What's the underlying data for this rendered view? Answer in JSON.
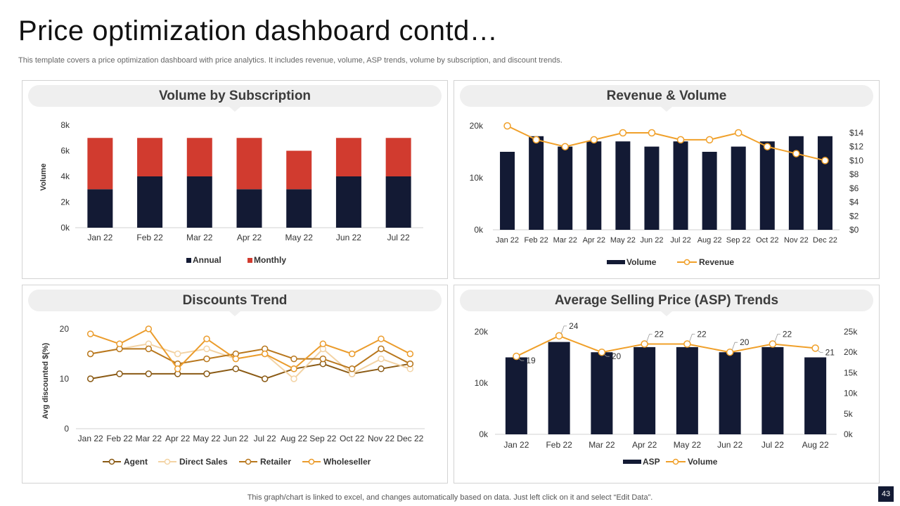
{
  "header": {
    "title": "Price optimization dashboard contd…",
    "subtitle": "This template covers a price optimization dashboard with price analytics. It includes revenue, volume, ASP trends, volume by subscription, and discount trends."
  },
  "footer": {
    "note": "This graph/chart is linked to excel,  and changes automatically based on data. Just left click on it and select “Edit Data”.",
    "page_number": "43"
  },
  "colors": {
    "navy": "#131a34",
    "red": "#d13b2f",
    "orange": "#f0a02a",
    "agent": "#8a5a14",
    "direct_sales": "#f3d3a4",
    "retailer": "#b8771d",
    "wholeseller": "#eb9c2c"
  },
  "chart_data": [
    {
      "id": "subscription",
      "type": "bar",
      "stacked": true,
      "title": "Volume by Subscription",
      "ylabel": "Volume",
      "xlabel": "",
      "ylim": [
        0,
        8000
      ],
      "y_ticks": [
        "0k",
        "2k",
        "4k",
        "6k",
        "8k"
      ],
      "categories": [
        "Jan 22",
        "Feb 22",
        "Mar 22",
        "Apr 22",
        "May 22",
        "Jun 22",
        "Jul 22"
      ],
      "series": [
        {
          "name": "Annual",
          "values": [
            3000,
            4000,
            4000,
            3000,
            3000,
            4000,
            4000
          ]
        },
        {
          "name": "Monthly",
          "values": [
            4000,
            3000,
            3000,
            4000,
            3000,
            3000,
            3000
          ]
        }
      ],
      "legend": "bottom",
      "grid": false
    },
    {
      "id": "revenue_volume",
      "type": "bar+line",
      "title": "Revenue & Volume",
      "ylim": [
        0,
        20000
      ],
      "y_ticks": [
        "0k",
        "10k",
        "20k"
      ],
      "y2lim": [
        0,
        15
      ],
      "y2_ticks": [
        "$0",
        "$2",
        "$4",
        "$6",
        "$8",
        "$10",
        "$12",
        "$14"
      ],
      "categories": [
        "Jan 22",
        "Feb 22",
        "Mar 22",
        "Apr 22",
        "May 22",
        "Jun 22",
        "Jul 22",
        "Aug 22",
        "Sep 22",
        "Oct 22",
        "Nov 22",
        "Dec 22"
      ],
      "series": [
        {
          "name": "Volume",
          "kind": "bar",
          "values": [
            15000,
            18000,
            16000,
            17000,
            17000,
            16000,
            17000,
            15000,
            16000,
            17000,
            18000,
            18000
          ]
        },
        {
          "name": "Revenue",
          "kind": "line",
          "axis": "right",
          "values": [
            15,
            13,
            12,
            13,
            14,
            14,
            13,
            13,
            14,
            12,
            11,
            10
          ]
        }
      ],
      "legend": "bottom",
      "grid": false
    },
    {
      "id": "discounts",
      "type": "line",
      "title": "Discounts Trend",
      "ylabel": "Avg discounted $(%)",
      "ylim": [
        0,
        20
      ],
      "y_ticks": [
        "0",
        "10",
        "20"
      ],
      "categories": [
        "Jan 22",
        "Feb 22",
        "Mar 22",
        "Apr 22",
        "May 22",
        "Jun 22",
        "Jul 22",
        "Aug 22",
        "Sep 22",
        "Oct 22",
        "Nov 22",
        "Dec 22"
      ],
      "series": [
        {
          "name": "Agent",
          "values": [
            10,
            11,
            11,
            11,
            11,
            12,
            10,
            12,
            13,
            11,
            12,
            13
          ]
        },
        {
          "name": "Direct Sales",
          "values": [
            15,
            16,
            17,
            15,
            16,
            14,
            15,
            10,
            16,
            11,
            14,
            12
          ]
        },
        {
          "name": "Retailer",
          "values": [
            15,
            16,
            16,
            13,
            14,
            15,
            16,
            14,
            14,
            12,
            16,
            13
          ]
        },
        {
          "name": "Wholeseller",
          "values": [
            19,
            17,
            20,
            12,
            18,
            14,
            15,
            12,
            17,
            15,
            18,
            15
          ]
        }
      ],
      "legend": "bottom",
      "grid": false
    },
    {
      "id": "asp",
      "type": "bar+line",
      "title": "Average Selling Price (ASP) Trends",
      "ylim": [
        0,
        20000
      ],
      "y_ticks": [
        "0k",
        "10k",
        "20k"
      ],
      "y2lim": [
        0,
        25
      ],
      "y2_ticks": [
        "0k",
        "5k",
        "10k",
        "15k",
        "20k",
        "25k"
      ],
      "categories": [
        "Jan 22",
        "Feb 22",
        "Mar 22",
        "Apr 22",
        "May 22",
        "Jun 22",
        "Jul 22",
        "Aug 22"
      ],
      "series": [
        {
          "name": "ASP",
          "kind": "bar",
          "values": [
            15000,
            18000,
            16000,
            17000,
            17000,
            16000,
            17000,
            15000
          ]
        },
        {
          "name": "Volume",
          "kind": "line",
          "axis": "right",
          "values": [
            19,
            24,
            20,
            22,
            22,
            20,
            22,
            21
          ],
          "labels": [
            "19",
            "24",
            "20",
            "22",
            "22",
            "20",
            "22",
            "21"
          ]
        }
      ],
      "legend": "bottom",
      "grid": false
    }
  ]
}
